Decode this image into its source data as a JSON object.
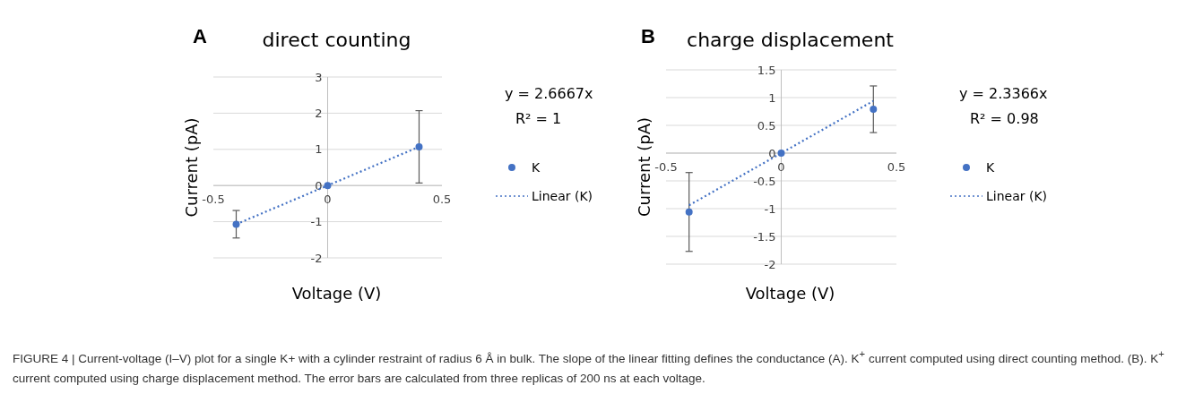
{
  "chart_data": [
    {
      "type": "scatter",
      "title": "direct counting",
      "xlabel": "Voltage (V)",
      "ylabel": "Current (pA)",
      "xlim": [
        -0.5,
        0.5
      ],
      "xticks": [
        -0.5,
        0,
        0.5
      ],
      "ylim": [
        -2,
        3
      ],
      "yticks": [
        -2,
        -1,
        0,
        1,
        2,
        3
      ],
      "grid": "y",
      "legend": "right",
      "annotations": [
        "A",
        "y = 2.6667x",
        "R² = 1",
        "FIGURE 4 | Current-voltage (I–V) plot for a single K+ with a cylinder restraint of radius 6 Å in bulk. The slope of the linear fitting defines the conductance (A). K$^{+}$ current computed using direct counting method. (B). K$^{+}$ current computed using charge displacement method. The error bars are calculated from three replicas of 200 ns at each voltage."
      ],
      "series": [
        {
          "name": "K",
          "marker": "circle",
          "color": "#4472c4",
          "x": [
            -0.4,
            0,
            0.4
          ],
          "values": [
            -1.07,
            0,
            1.07
          ],
          "errors": [
            0.38,
            null,
            1.0
          ]
        },
        {
          "name": "Linear (K)",
          "type": "line",
          "line_style": "dotted",
          "color": "#4472c4",
          "x": [
            -0.4,
            0.4
          ],
          "values": [
            -1.07,
            1.07
          ]
        }
      ]
    },
    {
      "type": "scatter",
      "title": "charge displacement",
      "xlabel": "Voltage (V)",
      "ylabel": "Current (pA)",
      "xlim": [
        -0.5,
        0.5
      ],
      "xticks": [
        -0.5,
        0,
        0.5
      ],
      "ylim": [
        -2,
        1.5
      ],
      "yticks": [
        -2,
        -1.5,
        -1,
        -0.5,
        0,
        0.5,
        1,
        1.5
      ],
      "grid": "y",
      "legend": "right",
      "annotations": [
        "B",
        "y = 2.3366x",
        "R² = 0.98"
      ],
      "series": [
        {
          "name": "K",
          "marker": "circle",
          "color": "#4472c4",
          "x": [
            -0.4,
            0,
            0.4
          ],
          "values": [
            -1.06,
            0,
            0.79
          ],
          "errors": [
            0.71,
            null,
            0.42
          ]
        },
        {
          "name": "Linear (K)",
          "type": "line",
          "line_style": "dotted",
          "color": "#4472c4",
          "x": [
            -0.4,
            0.4
          ],
          "values": [
            -0.94,
            0.94
          ]
        }
      ]
    }
  ]
}
